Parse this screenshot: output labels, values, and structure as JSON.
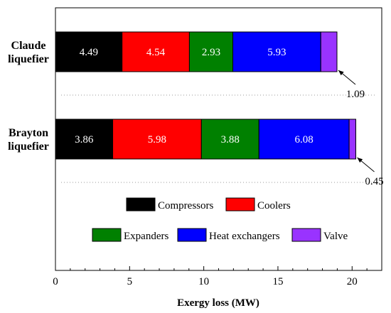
{
  "chart_data": {
    "type": "bar",
    "orientation": "horizontal",
    "stacked": true,
    "categories": [
      "Claude\nliquefier",
      "Brayton\nliquefier"
    ],
    "series": [
      {
        "name": "Compressors",
        "values": [
          4.49,
          3.86
        ],
        "color": "#000000",
        "label_color": "#ffffff",
        "labels": [
          "4.49",
          "3.86"
        ]
      },
      {
        "name": "Coolers",
        "values": [
          4.54,
          5.98
        ],
        "color": "#ff0000",
        "label_color": "#ffffff",
        "labels": [
          "4.54",
          "5.98"
        ]
      },
      {
        "name": "Expanders",
        "values": [
          2.93,
          3.88
        ],
        "color": "#008000",
        "label_color": "#ffffff",
        "labels": [
          "2.93",
          "3.88"
        ]
      },
      {
        "name": "Heat exchangers",
        "values": [
          5.93,
          6.08
        ],
        "color": "#0000ff",
        "label_color": "#ffffff",
        "labels": [
          "5.93",
          "6.08"
        ]
      },
      {
        "name": "Valve",
        "values": [
          1.09,
          0.45
        ],
        "color": "#9933ff",
        "label_color": "#000000",
        "labels": [
          "1.09",
          "0.45"
        ]
      }
    ],
    "xlabel": "Exergy loss (MW)",
    "ylabel": "",
    "xlim": [
      0,
      22
    ],
    "xticks": [
      "0",
      "5",
      "10",
      "15",
      "20"
    ],
    "xtick_values": [
      0,
      5,
      10,
      15,
      20
    ],
    "legend": "inside-bottom",
    "grid": false
  }
}
